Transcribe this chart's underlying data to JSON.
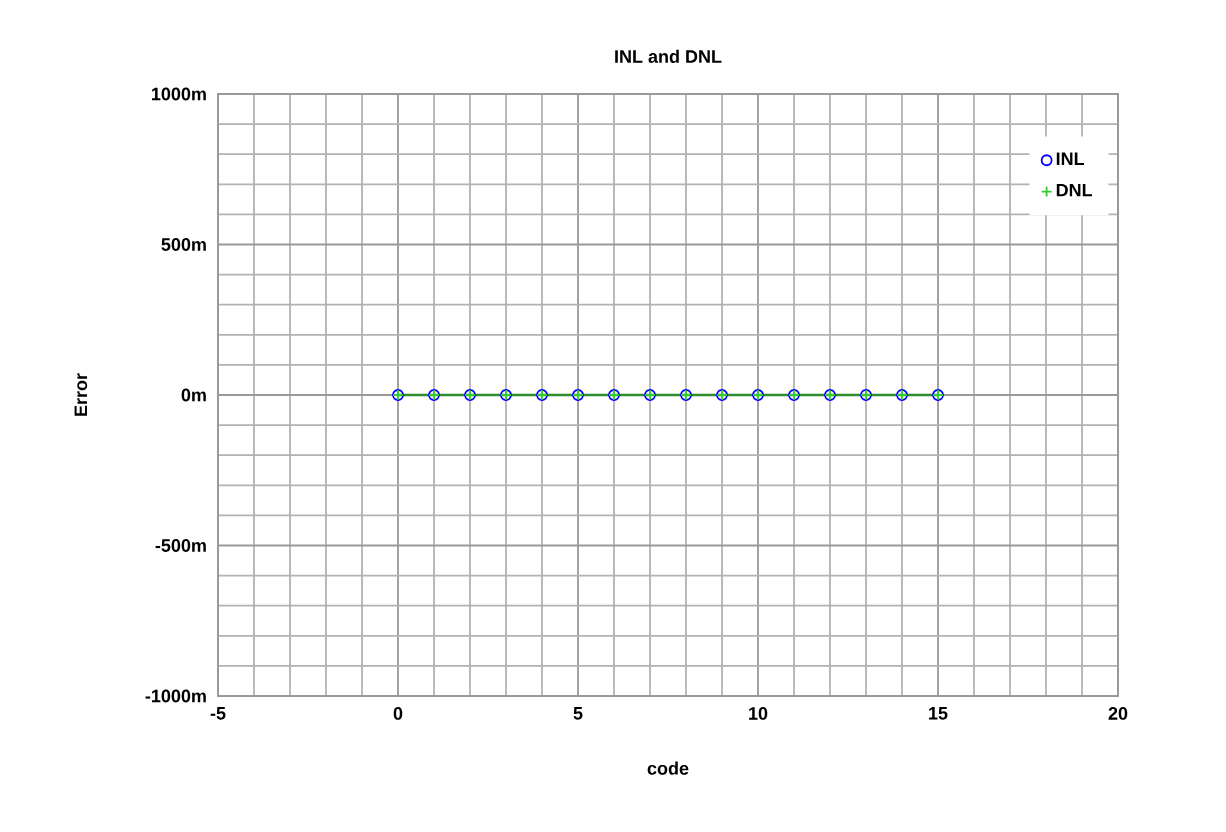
{
  "chart_data": {
    "type": "scatter",
    "title": "INL and DNL",
    "xlabel": "code",
    "ylabel": "Error",
    "x": [
      0,
      1,
      2,
      3,
      4,
      5,
      6,
      7,
      8,
      9,
      10,
      11,
      12,
      13,
      14,
      15
    ],
    "series": [
      {
        "name": "INL",
        "color": "#0000ff",
        "marker": "circle",
        "values": [
          0,
          0,
          0,
          0,
          0,
          0,
          0,
          0,
          0,
          0,
          0,
          0,
          0,
          0,
          0,
          0
        ]
      },
      {
        "name": "DNL",
        "type": "line",
        "color": "#33cc33",
        "marker": "cross",
        "values": [
          0,
          0,
          0,
          0,
          0,
          0,
          0,
          0,
          0,
          0,
          0,
          0,
          0,
          0,
          0,
          0
        ]
      }
    ],
    "xlim": [
      -5,
      20
    ],
    "xticks": [
      -5,
      0,
      5,
      10,
      15,
      20
    ],
    "ylim": [
      -1000,
      1000
    ],
    "yticks": [
      {
        "value": -1000,
        "label": "-1000m"
      },
      {
        "value": -500,
        "label": "-500m"
      },
      {
        "value": 0,
        "label": "0m"
      },
      {
        "value": 500,
        "label": "500m"
      },
      {
        "value": 1000,
        "label": "1000m"
      }
    ],
    "grid": true,
    "legend": "top right"
  }
}
